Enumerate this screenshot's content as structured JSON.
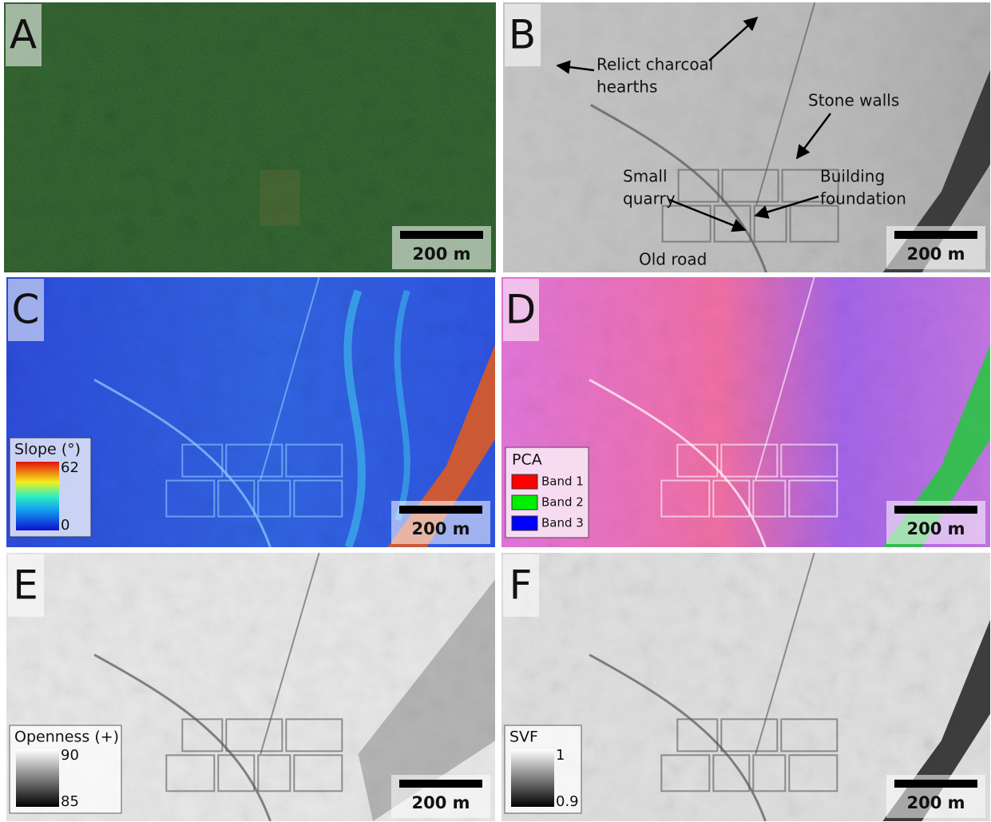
{
  "panels": [
    {
      "label": "A",
      "scale_bar": "200 m"
    },
    {
      "label": "B",
      "scale_bar": "200 m",
      "annotations": [
        {
          "lines": [
            "Relict charcoal",
            "hearths"
          ]
        },
        {
          "lines": [
            "Stone walls"
          ]
        },
        {
          "lines": [
            "Small",
            "quarry"
          ]
        },
        {
          "lines": [
            "Building",
            "foundation"
          ]
        },
        {
          "lines": [
            "Old road"
          ]
        }
      ]
    },
    {
      "label": "C",
      "scale_bar": "200 m",
      "legend": {
        "title": "Slope (°)",
        "max": "62",
        "min": "0"
      }
    },
    {
      "label": "D",
      "scale_bar": "200 m",
      "legend": {
        "title": "PCA",
        "entries": [
          "Band 1",
          "Band 2",
          "Band 3"
        ]
      }
    },
    {
      "label": "E",
      "scale_bar": "200 m",
      "legend": {
        "title": "Openness (+)",
        "max": "90",
        "min": "85"
      }
    },
    {
      "label": "F",
      "scale_bar": "200 m",
      "legend": {
        "title": "SVF",
        "max": "1",
        "min": "0.9"
      }
    }
  ]
}
